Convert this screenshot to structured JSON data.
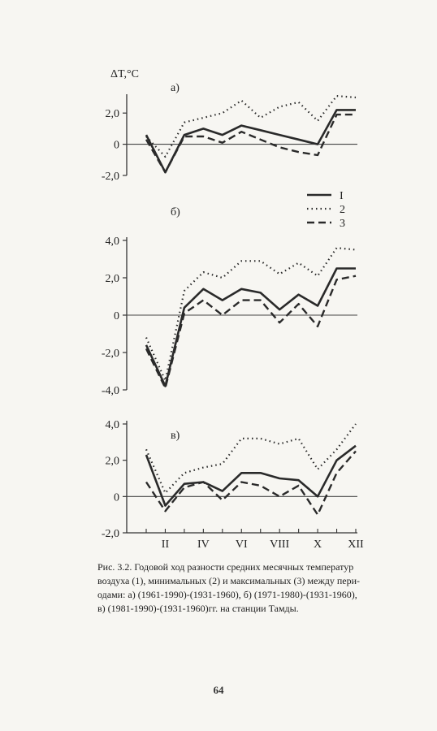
{
  "chart_data": [
    {
      "type": "line",
      "panel_label": "а)",
      "ylabel": "ΔT,°C",
      "ylim": [
        -2.0,
        3.0
      ],
      "yticks": [
        -2.0,
        0,
        2.0
      ],
      "ytick_labels": [
        "-2,0",
        "0",
        "2,0"
      ],
      "x": [
        1,
        2,
        3,
        4,
        5,
        6,
        7,
        8,
        9,
        10,
        11,
        12
      ],
      "series": [
        {
          "name": "I",
          "style": "solid",
          "values": [
            0.6,
            -1.8,
            0.6,
            1.0,
            0.6,
            1.2,
            0.9,
            0.6,
            0.3,
            0.0,
            2.2,
            2.2
          ]
        },
        {
          "name": "2",
          "style": "dotted",
          "values": [
            0.5,
            -0.8,
            1.4,
            1.7,
            2.0,
            2.8,
            1.7,
            2.4,
            2.7,
            1.5,
            3.1,
            3.0
          ]
        },
        {
          "name": "3",
          "style": "dashed",
          "values": [
            0.3,
            -1.8,
            0.5,
            0.5,
            0.1,
            0.8,
            0.3,
            -0.2,
            -0.5,
            -0.7,
            1.9,
            1.9
          ]
        }
      ]
    },
    {
      "type": "line",
      "panel_label": "б)",
      "ylim": [
        -4.0,
        4.0
      ],
      "yticks": [
        -4.0,
        -2.0,
        0,
        2.0,
        4.0
      ],
      "ytick_labels": [
        "-4,0",
        "-2,0",
        "0",
        "2,0",
        "4,0"
      ],
      "x": [
        1,
        2,
        3,
        4,
        5,
        6,
        7,
        8,
        9,
        10,
        11,
        12
      ],
      "series": [
        {
          "name": "I",
          "style": "solid",
          "values": [
            -1.6,
            -3.8,
            0.4,
            1.4,
            0.8,
            1.4,
            1.2,
            0.3,
            1.1,
            0.5,
            2.5,
            2.5
          ]
        },
        {
          "name": "2",
          "style": "dotted",
          "values": [
            -1.2,
            -3.5,
            1.3,
            2.3,
            2.0,
            2.9,
            2.9,
            2.2,
            2.8,
            2.1,
            3.6,
            3.5
          ]
        },
        {
          "name": "3",
          "style": "dashed",
          "values": [
            -1.8,
            -3.9,
            0.1,
            0.8,
            0.0,
            0.8,
            0.8,
            -0.4,
            0.6,
            -0.6,
            1.9,
            2.1
          ]
        }
      ]
    },
    {
      "type": "line",
      "panel_label": "в)",
      "ylim": [
        -2.0,
        4.0
      ],
      "yticks": [
        -2.0,
        0,
        2.0,
        4.0
      ],
      "ytick_labels": [
        "-2,0",
        "0",
        "2,0",
        "4,0"
      ],
      "x": [
        1,
        2,
        3,
        4,
        5,
        6,
        7,
        8,
        9,
        10,
        11,
        12
      ],
      "xtick_labels": [
        "",
        "II",
        "",
        "IV",
        "",
        "VI",
        "",
        "VIII",
        "",
        "X",
        "",
        "XII"
      ],
      "series": [
        {
          "name": "I",
          "style": "solid",
          "values": [
            2.3,
            -0.5,
            0.7,
            0.8,
            0.3,
            1.3,
            1.3,
            1.0,
            0.9,
            0.0,
            2.0,
            2.8
          ]
        },
        {
          "name": "2",
          "style": "dotted",
          "values": [
            2.6,
            0.2,
            1.3,
            1.6,
            1.8,
            3.2,
            3.2,
            2.9,
            3.2,
            1.5,
            2.6,
            4.0
          ]
        },
        {
          "name": "3",
          "style": "dashed",
          "values": [
            0.8,
            -0.8,
            0.5,
            0.8,
            -0.2,
            0.8,
            0.6,
            0.0,
            0.6,
            -1.0,
            1.3,
            2.5
          ]
        }
      ]
    }
  ],
  "legend": {
    "placement": "between panels а) and б), right side",
    "entries": [
      "I",
      "2",
      "3"
    ]
  },
  "caption": {
    "lines": [
      "Рис. 3.2. Годовой ход разности средних месячных температур",
      "воздуха (1), минимальных (2) и максимальных (3) между пери-",
      "одами: а) (1961-1990)-(1931-1960), б) (1971-1980)-(1931-1960),",
      "в) (1981-1990)-(1931-1960)гг. на станции Тамды."
    ]
  },
  "page_number": "64"
}
